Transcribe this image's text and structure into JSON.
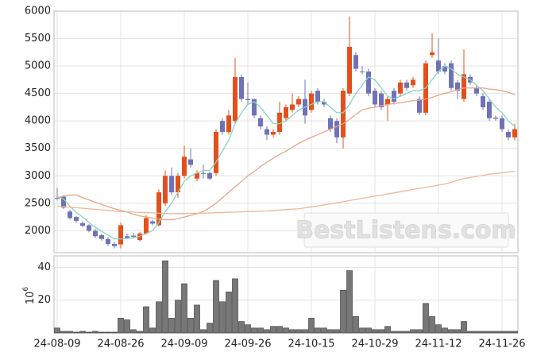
{
  "chart_data": [
    {
      "type": "candlestick",
      "ylim": [
        1600,
        6000
      ],
      "yticks": [
        2000,
        2500,
        3000,
        3500,
        4000,
        4500,
        5000,
        5500,
        6000
      ],
      "grid": true,
      "up_color": "#e3501c",
      "down_color": "#6f72b6",
      "open": [
        2600,
        2620,
        2350,
        2250,
        2140,
        2100,
        2000,
        1920,
        1850,
        1760,
        1750,
        1900,
        1910,
        1830,
        1950,
        2170,
        2100,
        2500,
        3000,
        2700,
        3000,
        3300,
        2950,
        3050,
        3050,
        3050,
        4000,
        3800,
        4000,
        4800,
        4400,
        4400,
        4050,
        3850,
        3750,
        3800,
        4050,
        4200,
        4300,
        4400,
        4200,
        4550,
        4350,
        4050,
        4000,
        3700,
        4500,
        5200,
        4900,
        4900,
        4550,
        4500,
        4300,
        4550,
        4500,
        4700,
        4650,
        4400,
        4150,
        5200,
        5100,
        5000,
        5050,
        4700,
        4400,
        4800,
        4600,
        4450,
        4350,
        4060,
        4050,
        3800,
        3700
      ],
      "high": [
        2780,
        2650,
        2380,
        2270,
        2170,
        2120,
        2030,
        1950,
        1880,
        1790,
        2150,
        1950,
        1960,
        1980,
        2280,
        2200,
        2750,
        3100,
        3150,
        3050,
        3550,
        3500,
        3100,
        3200,
        3080,
        3850,
        4050,
        4200,
        5150,
        4850,
        4700,
        4400,
        4100,
        3900,
        3850,
        4350,
        4300,
        4500,
        4450,
        4750,
        4550,
        4600,
        4400,
        4100,
        4050,
        4600,
        5900,
        5250,
        5000,
        4950,
        4600,
        4550,
        4450,
        4600,
        4750,
        4750,
        4800,
        4450,
        5100,
        5600,
        5500,
        5050,
        5100,
        4750,
        5300,
        4850,
        4650,
        4500,
        4400,
        4100,
        4100,
        3850,
        3950
      ],
      "low": [
        2550,
        2400,
        2200,
        2150,
        2060,
        1970,
        1870,
        1820,
        1720,
        1680,
        1680,
        1850,
        1870,
        1800,
        1930,
        2100,
        2080,
        2450,
        2650,
        2600,
        2950,
        3150,
        2900,
        2950,
        2920,
        3000,
        3750,
        3750,
        3950,
        4350,
        4300,
        4050,
        3850,
        3650,
        3700,
        3750,
        4000,
        4150,
        4250,
        3950,
        4150,
        4300,
        4250,
        3800,
        3600,
        3500,
        4450,
        4900,
        4850,
        4450,
        4250,
        4200,
        4000,
        4300,
        4450,
        4550,
        4600,
        4100,
        4100,
        5150,
        4850,
        4850,
        4550,
        4400,
        4350,
        4650,
        4450,
        4200,
        4000,
        4000,
        3800,
        3650,
        3650
      ],
      "close": [
        2590,
        2420,
        2230,
        2180,
        2090,
        2000,
        1900,
        1850,
        1760,
        1720,
        2100,
        1870,
        1890,
        1950,
        2230,
        2130,
        2700,
        3000,
        2700,
        3000,
        3350,
        3200,
        3050,
        3040,
        2950,
        3800,
        3800,
        4100,
        4800,
        4400,
        4380,
        4100,
        3900,
        3750,
        3800,
        4150,
        4250,
        4300,
        4400,
        4100,
        4500,
        4350,
        4300,
        3850,
        3700,
        4550,
        5350,
        4950,
        4890,
        4500,
        4300,
        4250,
        4400,
        4350,
        4700,
        4600,
        4750,
        4150,
        5050,
        5250,
        4900,
        4900,
        4600,
        4550,
        4850,
        4700,
        4500,
        4250,
        4050,
        4040,
        3850,
        3700,
        3850
      ],
      "series": [
        {
          "color": "#86d4c4",
          "values": [
            2620,
            2580,
            2450,
            2330,
            2250,
            2150,
            2060,
            1990,
            1920,
            1850,
            1850,
            1860,
            1870,
            1900,
            1950,
            2000,
            2150,
            2350,
            2500,
            2700,
            2900,
            3000,
            3050,
            3100,
            3100,
            3250,
            3450,
            3650,
            3950,
            4150,
            4300,
            4350,
            4250,
            4100,
            3950,
            3950,
            4000,
            4100,
            4200,
            4250,
            4300,
            4350,
            4350,
            4250,
            4150,
            4150,
            4300,
            4500,
            4650,
            4800,
            4750,
            4600,
            4450,
            4400,
            4450,
            4500,
            4550,
            4550,
            4600,
            4750,
            4900,
            5000,
            4950,
            4850,
            4800,
            4750,
            4650,
            4550,
            4400,
            4250,
            4150,
            4000,
            3900
          ]
        },
        {
          "color": "#e9a584",
          "values": [
            2600,
            2630,
            2650,
            2650,
            2600,
            2560,
            2520,
            2480,
            2440,
            2400,
            2370,
            2340,
            2300,
            2270,
            2250,
            2230,
            2210,
            2200,
            2200,
            2220,
            2250,
            2280,
            2310,
            2350,
            2420,
            2500,
            2600,
            2700,
            2800,
            2900,
            3000,
            3080,
            3170,
            3250,
            3320,
            3390,
            3450,
            3520,
            3590,
            3650,
            3700,
            3750,
            3800,
            3850,
            3900,
            3950,
            4030,
            4120,
            4200,
            4230,
            4250,
            4280,
            4300,
            4320,
            4330,
            4350,
            4370,
            4380,
            4400,
            4430,
            4470,
            4500,
            4530,
            4570,
            4600,
            4600,
            4600,
            4600,
            4580,
            4570,
            4550,
            4520,
            4480
          ]
        },
        {
          "color": "#efb595",
          "values": [
            2450,
            2440,
            2430,
            2420,
            2410,
            2400,
            2390,
            2380,
            2370,
            2360,
            2350,
            2345,
            2340,
            2335,
            2330,
            2325,
            2320,
            2315,
            2310,
            2312,
            2314,
            2316,
            2318,
            2320,
            2324,
            2328,
            2332,
            2336,
            2340,
            2344,
            2348,
            2352,
            2356,
            2360,
            2368,
            2376,
            2384,
            2392,
            2400,
            2417,
            2433,
            2450,
            2470,
            2490,
            2510,
            2530,
            2550,
            2570,
            2590,
            2610,
            2630,
            2650,
            2670,
            2690,
            2710,
            2730,
            2750,
            2770,
            2790,
            2810,
            2830,
            2850,
            2883,
            2917,
            2950,
            2970,
            2990,
            3010,
            3030,
            3042,
            3055,
            3068,
            3080
          ]
        }
      ],
      "watermark": "BestListens.com"
    },
    {
      "type": "bar",
      "ylabel": {
        "base": "10",
        "exponent": "6"
      },
      "ylim": [
        0,
        47
      ],
      "yticks": [
        20,
        40
      ],
      "grid": true,
      "color": "#777777",
      "categories": [
        "24-08-09",
        null,
        null,
        null,
        null,
        null,
        null,
        null,
        null,
        null,
        "24-08-26",
        null,
        null,
        null,
        null,
        null,
        null,
        null,
        null,
        null,
        "24-09-09",
        null,
        null,
        null,
        null,
        null,
        null,
        null,
        null,
        null,
        "24-09-26",
        null,
        null,
        null,
        null,
        null,
        null,
        null,
        null,
        null,
        "24-10-15",
        null,
        null,
        null,
        null,
        null,
        null,
        null,
        null,
        null,
        "24-10-29",
        null,
        null,
        null,
        null,
        null,
        null,
        null,
        null,
        null,
        "24-11-12",
        null,
        null,
        null,
        null,
        null,
        null,
        null,
        null,
        null,
        "24-11-26",
        null,
        null
      ],
      "values": [
        3,
        1,
        1,
        0.5,
        1,
        0.5,
        1,
        0.5,
        0.5,
        0.5,
        9,
        8,
        2,
        1,
        16,
        3,
        19,
        44,
        9,
        20,
        30,
        9,
        17,
        2,
        6,
        32,
        19,
        25,
        33,
        7,
        5,
        3,
        3,
        2,
        4,
        4,
        3,
        2,
        2,
        2,
        9,
        3,
        3,
        2,
        2,
        26,
        38,
        10,
        3,
        3,
        2,
        2,
        4,
        1,
        1,
        1,
        2,
        2,
        18,
        10,
        5,
        3,
        2,
        2,
        7,
        1,
        1,
        1,
        1,
        1,
        1,
        1,
        1
      ]
    }
  ]
}
